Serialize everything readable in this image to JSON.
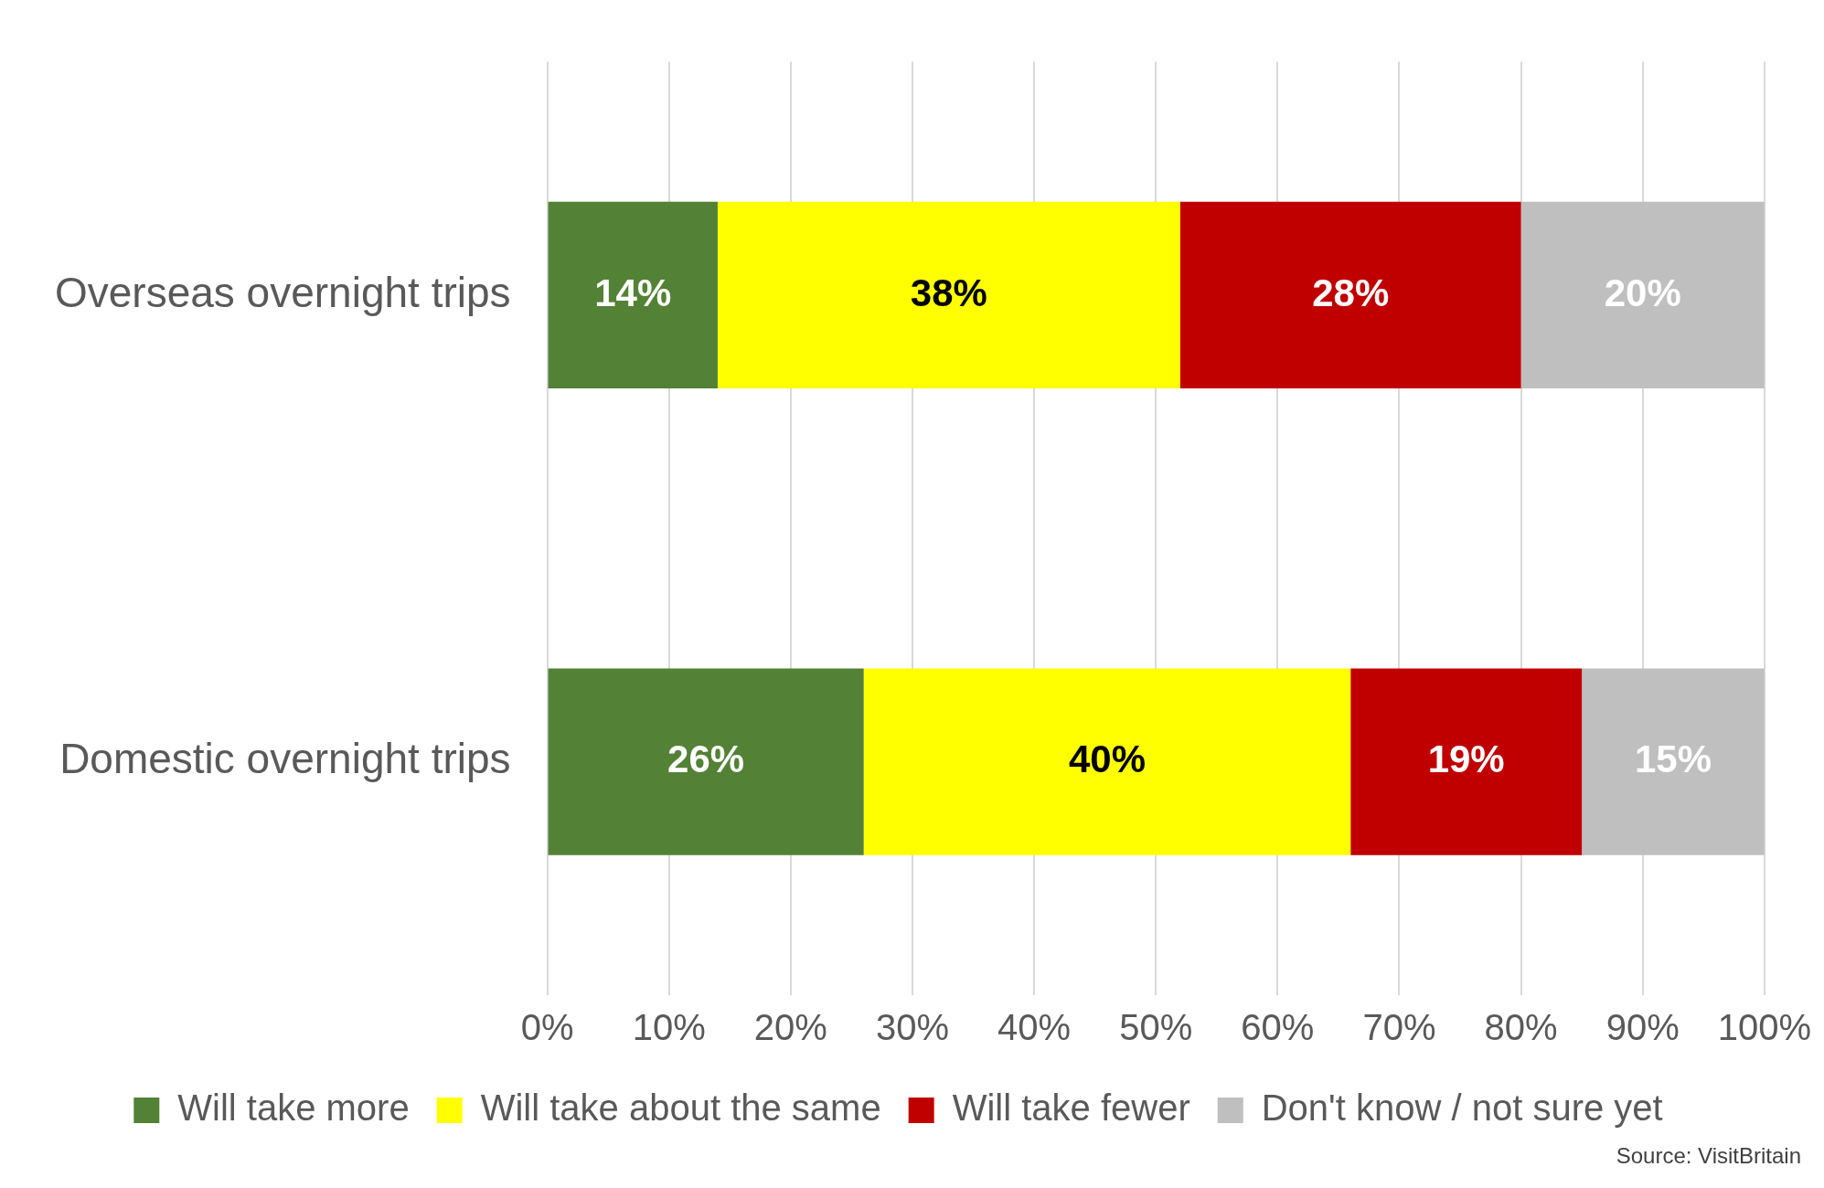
{
  "chart_data": {
    "type": "bar",
    "orientation": "horizontal",
    "stacked": true,
    "categories": [
      "Overseas overnight trips",
      "Domestic overnight trips"
    ],
    "series": [
      {
        "name": "Will take more",
        "color": "#538135",
        "values": [
          14,
          26
        ],
        "value_labels": [
          "14%",
          "26%"
        ]
      },
      {
        "name": "Will take about the same",
        "color": "#ffff00",
        "values": [
          38,
          40
        ],
        "value_labels": [
          "38%",
          "40%"
        ]
      },
      {
        "name": "Will take fewer",
        "color": "#c00000",
        "values": [
          28,
          19
        ],
        "value_labels": [
          "28%",
          "19%"
        ]
      },
      {
        "name": "Don't know / not sure yet",
        "color": "#bfbfbf",
        "values": [
          20,
          15
        ],
        "value_labels": [
          "20%",
          "15%"
        ]
      }
    ],
    "xlim": [
      0,
      100
    ],
    "xticks": [
      {
        "value": 0,
        "label": "0%"
      },
      {
        "value": 10,
        "label": "10%"
      },
      {
        "value": 20,
        "label": "20%"
      },
      {
        "value": 30,
        "label": "30%"
      },
      {
        "value": 40,
        "label": "40%"
      },
      {
        "value": 50,
        "label": "50%"
      },
      {
        "value": 60,
        "label": "60%"
      },
      {
        "value": 70,
        "label": "70%"
      },
      {
        "value": 80,
        "label": "80%"
      },
      {
        "value": 90,
        "label": "90%"
      },
      {
        "value": 100,
        "label": "100%"
      }
    ],
    "grid": "x",
    "legend": "bottom",
    "annotations": [
      "Source: VisitBritain"
    ]
  }
}
